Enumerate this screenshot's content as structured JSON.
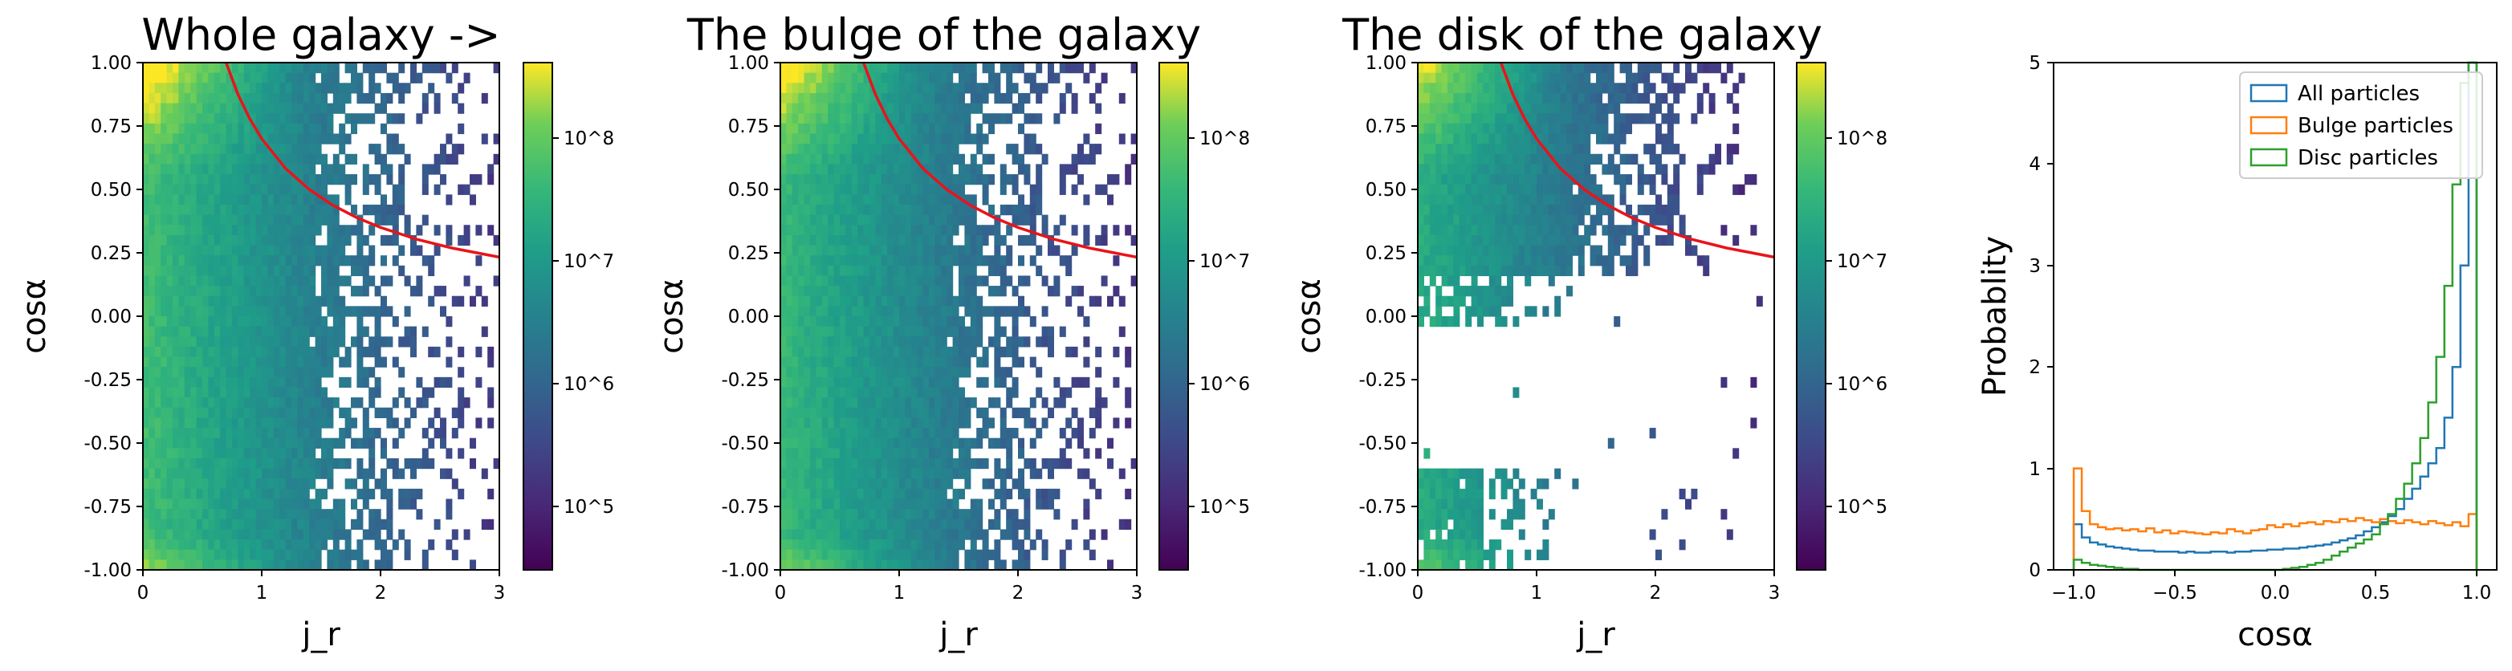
{
  "chart_data": [
    {
      "type": "heatmap",
      "title": "Whole galaxy ->",
      "xlabel": "j_r",
      "ylabel": "cosα",
      "xlim": [
        0,
        3
      ],
      "ylim": [
        -1,
        1
      ],
      "xticks": [
        "0",
        "1",
        "2",
        "3"
      ],
      "yticks": [
        "1.00",
        "0.75",
        "0.50",
        "0.25",
        "0.00",
        "-0.25",
        "-0.50",
        "-0.75",
        "-1.00"
      ],
      "colorbar": {
        "scale": "log",
        "range": [
          30000,
          400000000
        ],
        "tick_labels": [
          "10^8",
          "10^7",
          "10^6",
          "10^5"
        ]
      },
      "component": "whole",
      "curve": {
        "color": "#e8141a",
        "x": [
          0.7,
          0.8,
          0.9,
          1.0,
          1.2,
          1.4,
          1.6,
          1.8,
          2.0,
          2.3,
          2.6,
          3.0
        ],
        "y": [
          1.0,
          0.875,
          0.778,
          0.7,
          0.583,
          0.5,
          0.4375,
          0.389,
          0.35,
          0.304,
          0.269,
          0.233
        ]
      }
    },
    {
      "type": "heatmap",
      "title": "The bulge of the galaxy",
      "xlabel": "j_r",
      "ylabel": "cosα",
      "xlim": [
        0,
        3
      ],
      "ylim": [
        -1,
        1
      ],
      "xticks": [
        "0",
        "1",
        "2",
        "3"
      ],
      "yticks": [
        "1.00",
        "0.75",
        "0.50",
        "0.25",
        "0.00",
        "-0.25",
        "-0.50",
        "-0.75",
        "-1.00"
      ],
      "colorbar": {
        "scale": "log",
        "range": [
          30000,
          400000000
        ],
        "tick_labels": [
          "10^8",
          "10^7",
          "10^6",
          "10^5"
        ]
      },
      "component": "bulge",
      "curve": {
        "color": "#e8141a",
        "x": [
          0.7,
          0.8,
          0.9,
          1.0,
          1.2,
          1.4,
          1.6,
          1.8,
          2.0,
          2.3,
          2.6,
          3.0
        ],
        "y": [
          1.0,
          0.875,
          0.778,
          0.7,
          0.583,
          0.5,
          0.4375,
          0.389,
          0.35,
          0.304,
          0.269,
          0.233
        ]
      }
    },
    {
      "type": "heatmap",
      "title": "The disk of the galaxy",
      "xlabel": "j_r",
      "ylabel": "cosα",
      "xlim": [
        0,
        3
      ],
      "ylim": [
        -1,
        1
      ],
      "xticks": [
        "0",
        "1",
        "2",
        "3"
      ],
      "yticks": [
        "1.00",
        "0.75",
        "0.50",
        "0.25",
        "0.00",
        "-0.25",
        "-0.50",
        "-0.75",
        "-1.00"
      ],
      "colorbar": {
        "scale": "log",
        "range": [
          30000,
          400000000
        ],
        "tick_labels": [
          "10^8",
          "10^7",
          "10^6",
          "10^5"
        ]
      },
      "component": "disk",
      "curve": {
        "color": "#e8141a",
        "x": [
          0.7,
          0.8,
          0.9,
          1.0,
          1.2,
          1.4,
          1.6,
          1.8,
          2.0,
          2.3,
          2.6,
          3.0
        ],
        "y": [
          1.0,
          0.875,
          0.778,
          0.7,
          0.583,
          0.5,
          0.4375,
          0.389,
          0.35,
          0.304,
          0.269,
          0.233
        ]
      }
    },
    {
      "type": "histogram",
      "title": "",
      "xlabel": "cosα",
      "ylabel": "Probablity",
      "xlim": [
        -1.1,
        1.1
      ],
      "ylim": [
        0,
        5
      ],
      "xticks": [
        "−1.0",
        "−0.5",
        "0.0",
        "0.5",
        "1.0"
      ],
      "yticks": [
        "5",
        "4",
        "3",
        "2",
        "1",
        "0"
      ],
      "legend": "top-right",
      "bins": {
        "start": -1.0,
        "end": 1.0,
        "count": 50
      },
      "series": [
        {
          "name": "All particles",
          "color": "#1f77b4",
          "values": [
            0.45,
            0.32,
            0.27,
            0.25,
            0.23,
            0.22,
            0.21,
            0.2,
            0.19,
            0.19,
            0.18,
            0.18,
            0.18,
            0.17,
            0.18,
            0.17,
            0.17,
            0.18,
            0.18,
            0.17,
            0.18,
            0.18,
            0.19,
            0.19,
            0.2,
            0.2,
            0.21,
            0.21,
            0.22,
            0.23,
            0.24,
            0.25,
            0.27,
            0.29,
            0.31,
            0.34,
            0.38,
            0.42,
            0.47,
            0.53,
            0.6,
            0.7,
            0.8,
            0.92,
            1.05,
            1.2,
            1.5,
            2.0,
            3.0,
            5.0
          ]
        },
        {
          "name": "Bulge particles",
          "color": "#ff7f0e",
          "values": [
            1.0,
            0.58,
            0.45,
            0.42,
            0.4,
            0.41,
            0.39,
            0.4,
            0.38,
            0.41,
            0.37,
            0.39,
            0.36,
            0.38,
            0.37,
            0.36,
            0.35,
            0.37,
            0.36,
            0.4,
            0.38,
            0.36,
            0.39,
            0.4,
            0.44,
            0.42,
            0.45,
            0.43,
            0.46,
            0.47,
            0.45,
            0.48,
            0.47,
            0.5,
            0.48,
            0.51,
            0.49,
            0.47,
            0.5,
            0.48,
            0.46,
            0.49,
            0.47,
            0.45,
            0.48,
            0.46,
            0.44,
            0.47,
            0.43,
            0.55
          ]
        },
        {
          "name": "Disc particles",
          "color": "#2ca02c",
          "values": [
            0.1,
            0.07,
            0.05,
            0.04,
            0.03,
            0.02,
            0.01,
            0.01,
            0.0,
            0.0,
            0.0,
            0.0,
            0.0,
            0.0,
            0.0,
            0.0,
            0.0,
            0.0,
            0.0,
            0.0,
            0.0,
            0.0,
            0.0,
            0.0,
            0.0,
            0.0,
            0.01,
            0.02,
            0.03,
            0.05,
            0.07,
            0.1,
            0.14,
            0.18,
            0.22,
            0.26,
            0.3,
            0.35,
            0.45,
            0.55,
            0.7,
            0.85,
            1.05,
            1.3,
            1.65,
            2.1,
            2.8,
            3.8,
            4.8,
            5.0
          ]
        }
      ]
    }
  ]
}
